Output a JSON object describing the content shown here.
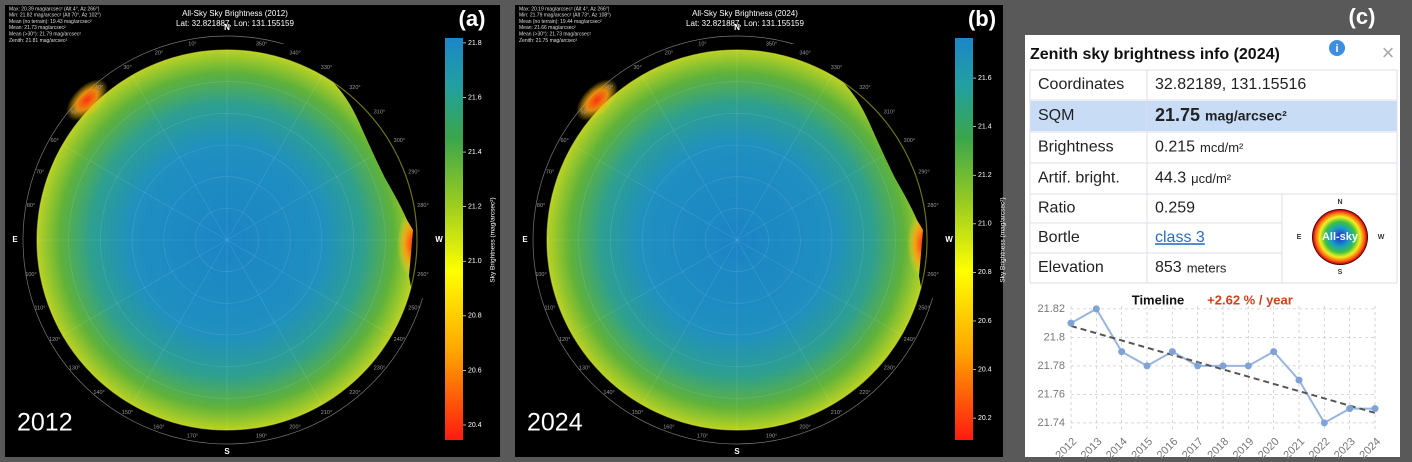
{
  "panels": [
    {
      "label": "(a)",
      "year": "2012",
      "title": "All-Sky Sky Brightness (2012)",
      "subtitle": "Lat: 32.821887, Lon: 131.155159",
      "stats": [
        "Max: 20.39 mag/arcsec² (Alt 4°, Az 266°)",
        "Min: 21.82 mag/arcsec² (Alt 70°, Az 102°)",
        "Mean (no terrain): 19.43 mag/arcsec²",
        "Mean: 21.73 mag/arcsec²",
        "Mean (>30°): 21.79 mag/arcsec²",
        "Zenith: 21.81 mag/arcsec²"
      ],
      "colorbar": {
        "label": "Sky Brightness (mag/arcsec²)",
        "ylim": [
          20.345,
          21.818
        ],
        "yticks": [
          20.4,
          20.6,
          20.8,
          {
            "value": 21,
            "label": "21.0"
          },
          21.2,
          21.4,
          21.6,
          21.8
        ]
      }
    },
    {
      "label": "(b)",
      "year": "2024",
      "title": "All-Sky Sky Brightness (2024)",
      "subtitle": "Lat: 32.821887, Lon: 131.155159",
      "stats": [
        "Max: 20.19 mag/arcsec² (Alt 4°, Az 266°)",
        "Min: 21.79 mag/arcsec² (Alt 73°, Az 108°)",
        "Mean (no terrain): 19.44 mag/arcsec²",
        "Mean: 21.66 mag/arcsec²",
        "Mean (>30°): 21.73 mag/arcsec²",
        "Zenith: 21.75 mag/arcsec²"
      ],
      "colorbar": {
        "label": "Sky Brightness (mag/arcsec²)",
        "ylim": [
          20.11,
          21.765
        ],
        "yticks": [
          20.2,
          20.4,
          20.6,
          20.8,
          {
            "value": 21,
            "label": "21.0"
          },
          21.2,
          21.4,
          21.6
        ]
      }
    }
  ],
  "compass": [
    {
      "value": 0,
      "label": "N"
    },
    {
      "value": 90,
      "label": "E"
    },
    {
      "value": 180,
      "label": "S"
    },
    {
      "value": 270,
      "label": "W"
    }
  ],
  "azimuth_ticks": [
    {
      "value": 10,
      "label": "10°"
    },
    {
      "value": 20,
      "label": "20°"
    },
    {
      "value": 30,
      "label": "30°"
    },
    {
      "value": 40,
      "label": "40°"
    },
    {
      "value": 50,
      "label": "50°"
    },
    {
      "value": 60,
      "label": "60°"
    },
    {
      "value": 70,
      "label": "70°"
    },
    {
      "value": 80,
      "label": "80°"
    },
    {
      "value": 100,
      "label": "100°"
    },
    {
      "value": 110,
      "label": "110°"
    },
    {
      "value": 120,
      "label": "120°"
    },
    {
      "value": 130,
      "label": "130°"
    },
    {
      "value": 140,
      "label": "140°"
    },
    {
      "value": 150,
      "label": "150°"
    },
    {
      "value": 160,
      "label": "160°"
    },
    {
      "value": 170,
      "label": "170°"
    },
    {
      "value": 190,
      "label": "190°"
    },
    {
      "value": 200,
      "label": "200°"
    },
    {
      "value": 210,
      "label": "210°"
    },
    {
      "value": 220,
      "label": "220°"
    },
    {
      "value": 230,
      "label": "230°"
    },
    {
      "value": 240,
      "label": "240°"
    },
    {
      "value": 250,
      "label": "250°"
    },
    {
      "value": 260,
      "label": "260°"
    },
    {
      "value": 280,
      "label": "280°"
    },
    {
      "value": 290,
      "label": "290°"
    },
    {
      "value": 300,
      "label": "300°"
    },
    {
      "value": 310,
      "label": "310°"
    },
    {
      "value": 320,
      "label": "320°"
    },
    {
      "value": 330,
      "label": "330°"
    },
    {
      "value": 340,
      "label": "340°"
    },
    {
      "value": 350,
      "label": "350°"
    }
  ],
  "info_card": {
    "label": "(c)",
    "title": "Zenith sky brightness info (2024)",
    "rows": [
      {
        "label": "Coordinates",
        "value": "32.82189, 131.15516"
      },
      {
        "label": "SQM",
        "value": "21.75",
        "unit": "mag/arcsec²"
      },
      {
        "label": "Brightness",
        "value": "0.215",
        "unit": "mcd/m²"
      },
      {
        "label": "Artif. bright.",
        "value": "44.3",
        "unit": "μcd/m²"
      },
      {
        "label": "Ratio",
        "value": "0.259"
      },
      {
        "label": "Bortle",
        "value": "class 3"
      },
      {
        "label": "Elevation",
        "value": "853",
        "unit": "meters"
      }
    ],
    "icon_label": "All-sky",
    "icon_compass": [
      "N",
      "E",
      "S",
      "W"
    ]
  },
  "chart_data": {
    "type": "line",
    "title": "Timeline",
    "annotation": "+2.62 % / year",
    "x": [
      2012,
      2013,
      2014,
      2015,
      2016,
      2017,
      2018,
      2019,
      2020,
      2021,
      2022,
      2023,
      2024
    ],
    "values": [
      21.81,
      21.82,
      21.79,
      21.78,
      21.79,
      21.78,
      21.78,
      21.78,
      21.79,
      21.77,
      21.74,
      21.75,
      21.75
    ],
    "color": "#9ab5dc",
    "marker_color": "#7fa3d6",
    "trendline": {
      "x": [
        2012,
        2024
      ],
      "values": [
        21.808,
        21.747
      ],
      "color": "#555555"
    },
    "xlim": [
      2012,
      2024
    ],
    "xticks": [
      2012,
      2013,
      2014,
      2015,
      2016,
      2017,
      2018,
      2019,
      2020,
      2021,
      2022,
      2023,
      2024
    ],
    "ylim": [
      21.735,
      21.822
    ],
    "yticks": [
      21.74,
      21.76,
      21.78,
      21.8,
      21.82
    ],
    "grid": true
  }
}
